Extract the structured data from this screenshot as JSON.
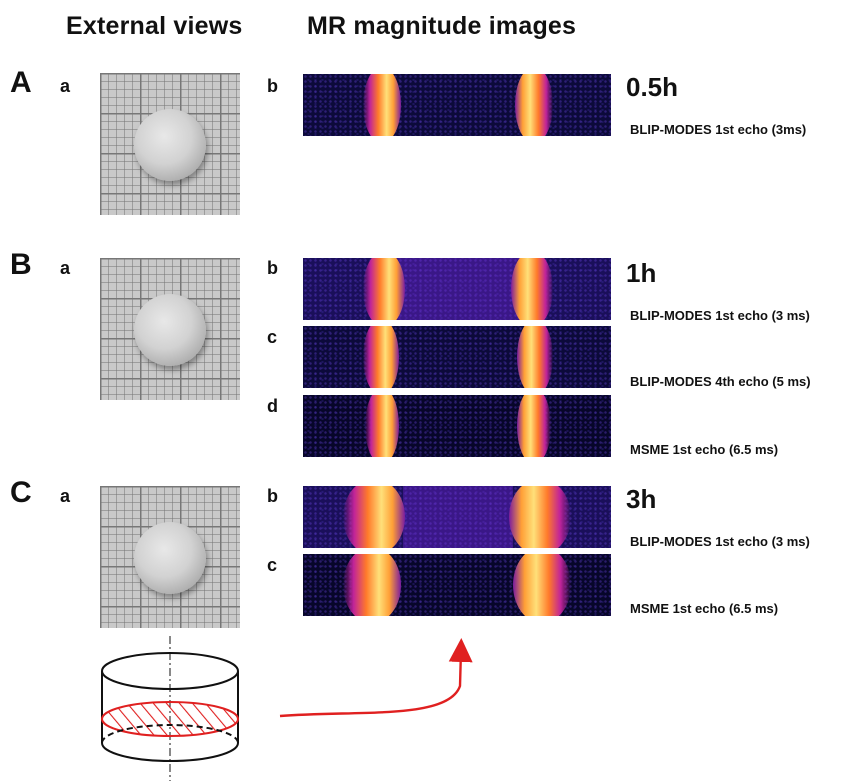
{
  "headings": {
    "external_views": "External views",
    "mr_images": "MR magnitude images"
  },
  "panels": [
    {
      "letter": "A",
      "photo_label": "a",
      "time": "0.5h",
      "images": [
        {
          "label": "b",
          "caption": "BLIP-MODES 1st echo (3ms)"
        }
      ]
    },
    {
      "letter": "B",
      "photo_label": "a",
      "time": "1h",
      "images": [
        {
          "label": "b",
          "caption": "BLIP-MODES 1st echo (3 ms)"
        },
        {
          "label": "c",
          "caption": "BLIP-MODES 4th echo (5 ms)"
        },
        {
          "label": "d",
          "caption": "MSME 1st echo (6.5 ms)"
        }
      ]
    },
    {
      "letter": "C",
      "photo_label": "a",
      "time": "3h",
      "images": [
        {
          "label": "b",
          "caption": "BLIP-MODES 1st echo (3 ms)"
        },
        {
          "label": "c",
          "caption": "MSME 1st echo (6.5 ms)"
        }
      ]
    }
  ],
  "colors": {
    "arrow": "#e02020",
    "hatch": "#e02020",
    "mr_background": "#0c0a3a",
    "band_hot": "#ffe079"
  }
}
